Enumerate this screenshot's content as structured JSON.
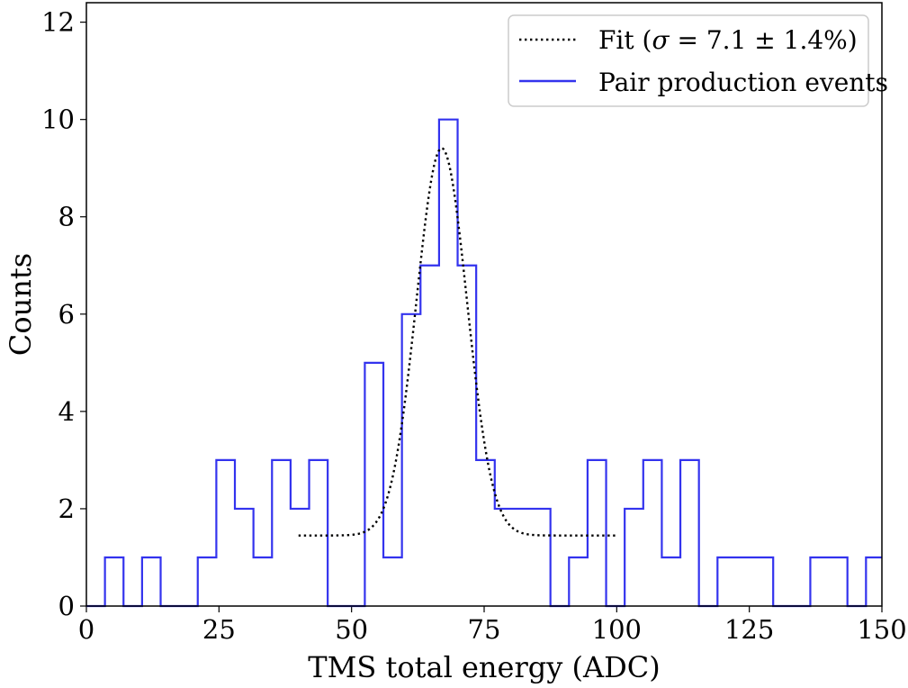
{
  "chart_data": {
    "type": "histogram",
    "xlabel": "TMS total energy (ADC)",
    "ylabel": "Counts",
    "xlim": [
      0,
      150
    ],
    "ylim": [
      0,
      12.4
    ],
    "xticks": [
      "0",
      "25",
      "50",
      "75",
      "100",
      "125",
      "150"
    ],
    "yticks": [
      "0",
      "2",
      "4",
      "6",
      "8",
      "10",
      "12"
    ],
    "grid": false,
    "legend_placement": "top-right",
    "bin_edges": [
      0,
      3.5,
      7.0,
      10.5,
      14.0,
      17.5,
      21.0,
      24.5,
      28.0,
      31.5,
      35.0,
      38.5,
      42.0,
      45.5,
      49.0,
      52.5,
      56.0,
      59.5,
      63.0,
      66.5,
      70.0,
      73.5,
      77.0,
      80.5,
      84.0,
      87.5,
      91.0,
      94.5,
      98.0,
      101.5,
      105.0,
      108.5,
      112.0,
      115.5,
      119.0,
      122.5,
      126.0,
      129.5,
      133.0,
      136.5,
      140.0,
      143.5,
      147.0,
      150.0
    ],
    "series": [
      {
        "name": "Pair production events",
        "style": "step",
        "color": "#3333ee",
        "counts": [
          0,
          1,
          0,
          1,
          0,
          0,
          1,
          3,
          2,
          1,
          3,
          2,
          3,
          0,
          0,
          5,
          1,
          6,
          7,
          10,
          7,
          3,
          2,
          2,
          2,
          0,
          1,
          3,
          0,
          2,
          3,
          1,
          3,
          0,
          1,
          1,
          1,
          0,
          0,
          1,
          1,
          0,
          1
        ]
      },
      {
        "name": "Fit (σ = 7.1 ± 1.4%)",
        "style": "dotted",
        "color": "#000000",
        "model": "gaussian_plus_constant",
        "x_range": [
          40,
          100
        ],
        "amplitude": 7.96,
        "mean": 67.0,
        "sigma": 4.76,
        "baseline": 1.45
      }
    ]
  },
  "legend": {
    "fit_label_prefix": "Fit (",
    "fit_sigma": "σ",
    "fit_label_suffix": " = 7.1 ± 1.4%)",
    "data_label": "Pair production events"
  }
}
